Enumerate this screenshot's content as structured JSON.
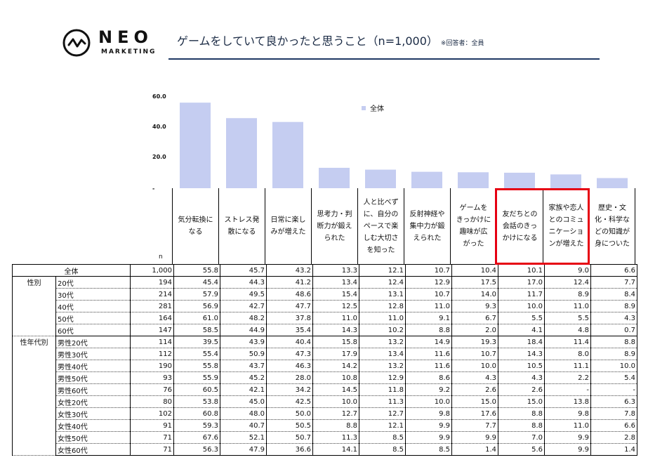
{
  "brand": {
    "name": "NEO",
    "sub": "MARKETING"
  },
  "title": "ゲームをしていて良かったと思うこと（n=1,000）",
  "title_note": "※回答者：全員",
  "colors": {
    "bar": "#c5cdf1",
    "accent_box": "#e60012",
    "title_rule": "#1f3864"
  },
  "n_label": "n",
  "chart_data": {
    "type": "bar",
    "categories": [
      "気分転換になる",
      "ストレス発散になる",
      "日常に楽しみが増えた",
      "思考力・判断力が鍛えられた",
      "人と比べずに、自分のペースで楽しむ大切さを知った",
      "反射神経や集中力が鍛えられた",
      "ゲームをきっかけに趣味が広がった",
      "友だちとの会話のきっかけになる",
      "家族や恋人とのコミュニケーションが増えた",
      "歴史・文化・科学などの知識が身についた"
    ],
    "series": [
      {
        "name": "全体",
        "values": [
          55.8,
          45.7,
          43.2,
          13.3,
          12.1,
          10.7,
          10.4,
          10.1,
          9.0,
          6.6
        ]
      }
    ],
    "y_ticks": [
      "60.0",
      "40.0",
      "20.0",
      "-"
    ],
    "ylim": [
      0,
      60
    ],
    "legend_position": "top-center",
    "grid": false
  },
  "headers": [
    "気分転換に\nなる",
    "ストレス発\n散になる",
    "日常に楽し\nみが増えた",
    "思考力・判\n断力が鍛え\nられた",
    "人と比べず\nに、自分の\nペースで楽\nしむ大切さ\nを知った",
    "反射神経や\n集中力が鍛\nえられた",
    "ゲームを\nきっかけに\n趣味が広\nがった",
    "友だちとの\n会話のきっ\nかけになる",
    "家族や恋人\nとのコミュ\nニケーショ\nンが増えた",
    "歴史・文\n化・科学な\nどの知識が\n身についた"
  ],
  "highlighted_columns": [
    7,
    8
  ],
  "table": {
    "rows": [
      {
        "group": "",
        "label": "全体",
        "n": "1,000",
        "values": [
          "55.8",
          "45.7",
          "43.2",
          "13.3",
          "12.1",
          "10.7",
          "10.4",
          "10.1",
          "9.0",
          "6.6"
        ]
      },
      {
        "group": "性別",
        "label": "20代",
        "n": "194",
        "values": [
          "45.4",
          "44.3",
          "41.2",
          "13.4",
          "12.4",
          "12.9",
          "17.5",
          "17.0",
          "12.4",
          "7.7"
        ]
      },
      {
        "group": "",
        "label": "30代",
        "n": "214",
        "values": [
          "57.9",
          "49.5",
          "48.6",
          "15.4",
          "13.1",
          "10.7",
          "14.0",
          "11.7",
          "8.9",
          "8.4"
        ]
      },
      {
        "group": "",
        "label": "40代",
        "n": "281",
        "values": [
          "56.9",
          "42.7",
          "47.7",
          "12.5",
          "12.8",
          "11.0",
          "9.3",
          "10.0",
          "11.0",
          "8.9"
        ]
      },
      {
        "group": "",
        "label": "50代",
        "n": "164",
        "values": [
          "61.0",
          "48.2",
          "37.8",
          "11.0",
          "11.0",
          "9.1",
          "6.7",
          "5.5",
          "5.5",
          "4.3"
        ]
      },
      {
        "group": "",
        "label": "60代",
        "n": "147",
        "values": [
          "58.5",
          "44.9",
          "35.4",
          "14.3",
          "10.2",
          "8.8",
          "2.0",
          "4.1",
          "4.8",
          "0.7"
        ]
      },
      {
        "group": "性年代別",
        "label": "男性20代",
        "n": "114",
        "values": [
          "39.5",
          "43.9",
          "40.4",
          "15.8",
          "13.2",
          "14.9",
          "19.3",
          "18.4",
          "11.4",
          "8.8"
        ]
      },
      {
        "group": "",
        "label": "男性30代",
        "n": "112",
        "values": [
          "55.4",
          "50.9",
          "47.3",
          "17.9",
          "13.4",
          "11.6",
          "10.7",
          "14.3",
          "8.0",
          "8.9"
        ]
      },
      {
        "group": "",
        "label": "男性40代",
        "n": "190",
        "values": [
          "55.8",
          "43.7",
          "46.3",
          "14.2",
          "13.2",
          "11.6",
          "10.0",
          "10.5",
          "11.1",
          "10.0"
        ]
      },
      {
        "group": "",
        "label": "男性50代",
        "n": "93",
        "values": [
          "55.9",
          "45.2",
          "28.0",
          "10.8",
          "12.9",
          "8.6",
          "4.3",
          "4.3",
          "2.2",
          "5.4"
        ]
      },
      {
        "group": "",
        "label": "男性60代",
        "n": "76",
        "values": [
          "60.5",
          "42.1",
          "34.2",
          "14.5",
          "11.8",
          "9.2",
          "2.6",
          "2.6",
          "-",
          "-"
        ]
      },
      {
        "group": "",
        "label": "女性20代",
        "n": "80",
        "values": [
          "53.8",
          "45.0",
          "42.5",
          "10.0",
          "11.3",
          "10.0",
          "15.0",
          "15.0",
          "13.8",
          "6.3"
        ]
      },
      {
        "group": "",
        "label": "女性30代",
        "n": "102",
        "values": [
          "60.8",
          "48.0",
          "50.0",
          "12.7",
          "12.7",
          "9.8",
          "17.6",
          "8.8",
          "9.8",
          "7.8"
        ]
      },
      {
        "group": "",
        "label": "女性40代",
        "n": "91",
        "values": [
          "59.3",
          "40.7",
          "50.5",
          "8.8",
          "12.1",
          "9.9",
          "7.7",
          "8.8",
          "11.0",
          "6.6"
        ]
      },
      {
        "group": "",
        "label": "女性50代",
        "n": "71",
        "values": [
          "67.6",
          "52.1",
          "50.7",
          "11.3",
          "8.5",
          "9.9",
          "9.9",
          "7.0",
          "9.9",
          "2.8"
        ]
      },
      {
        "group": "",
        "label": "女性60代",
        "n": "71",
        "values": [
          "56.3",
          "47.9",
          "36.6",
          "14.1",
          "8.5",
          "8.5",
          "1.4",
          "5.6",
          "9.9",
          "1.4"
        ]
      }
    ]
  }
}
